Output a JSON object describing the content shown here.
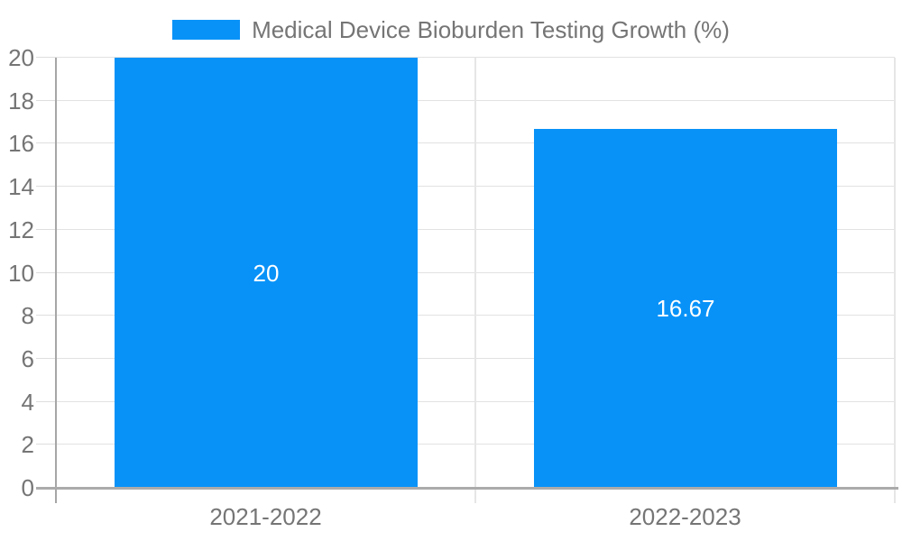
{
  "chart_data": {
    "type": "bar",
    "title": "Medical Device Bioburden Testing Growth (%)",
    "categories": [
      "2021-2022",
      "2022-2023"
    ],
    "values": [
      20,
      16.67
    ],
    "value_labels": [
      "20",
      "16.67"
    ],
    "xlabel": "",
    "ylabel": "",
    "ylim": [
      0,
      20
    ],
    "yticks": [
      0,
      2,
      4,
      6,
      8,
      10,
      12,
      14,
      16,
      18,
      20
    ],
    "grid": true,
    "legend_position": "top-center",
    "bar_color": "#0892f8",
    "value_label_color": "#ffffff",
    "axis_text_color": "#757575",
    "gridline_color": "#e2e2e2",
    "axis_line_color": "#a6a6a6",
    "background_color": "#ffffff"
  }
}
